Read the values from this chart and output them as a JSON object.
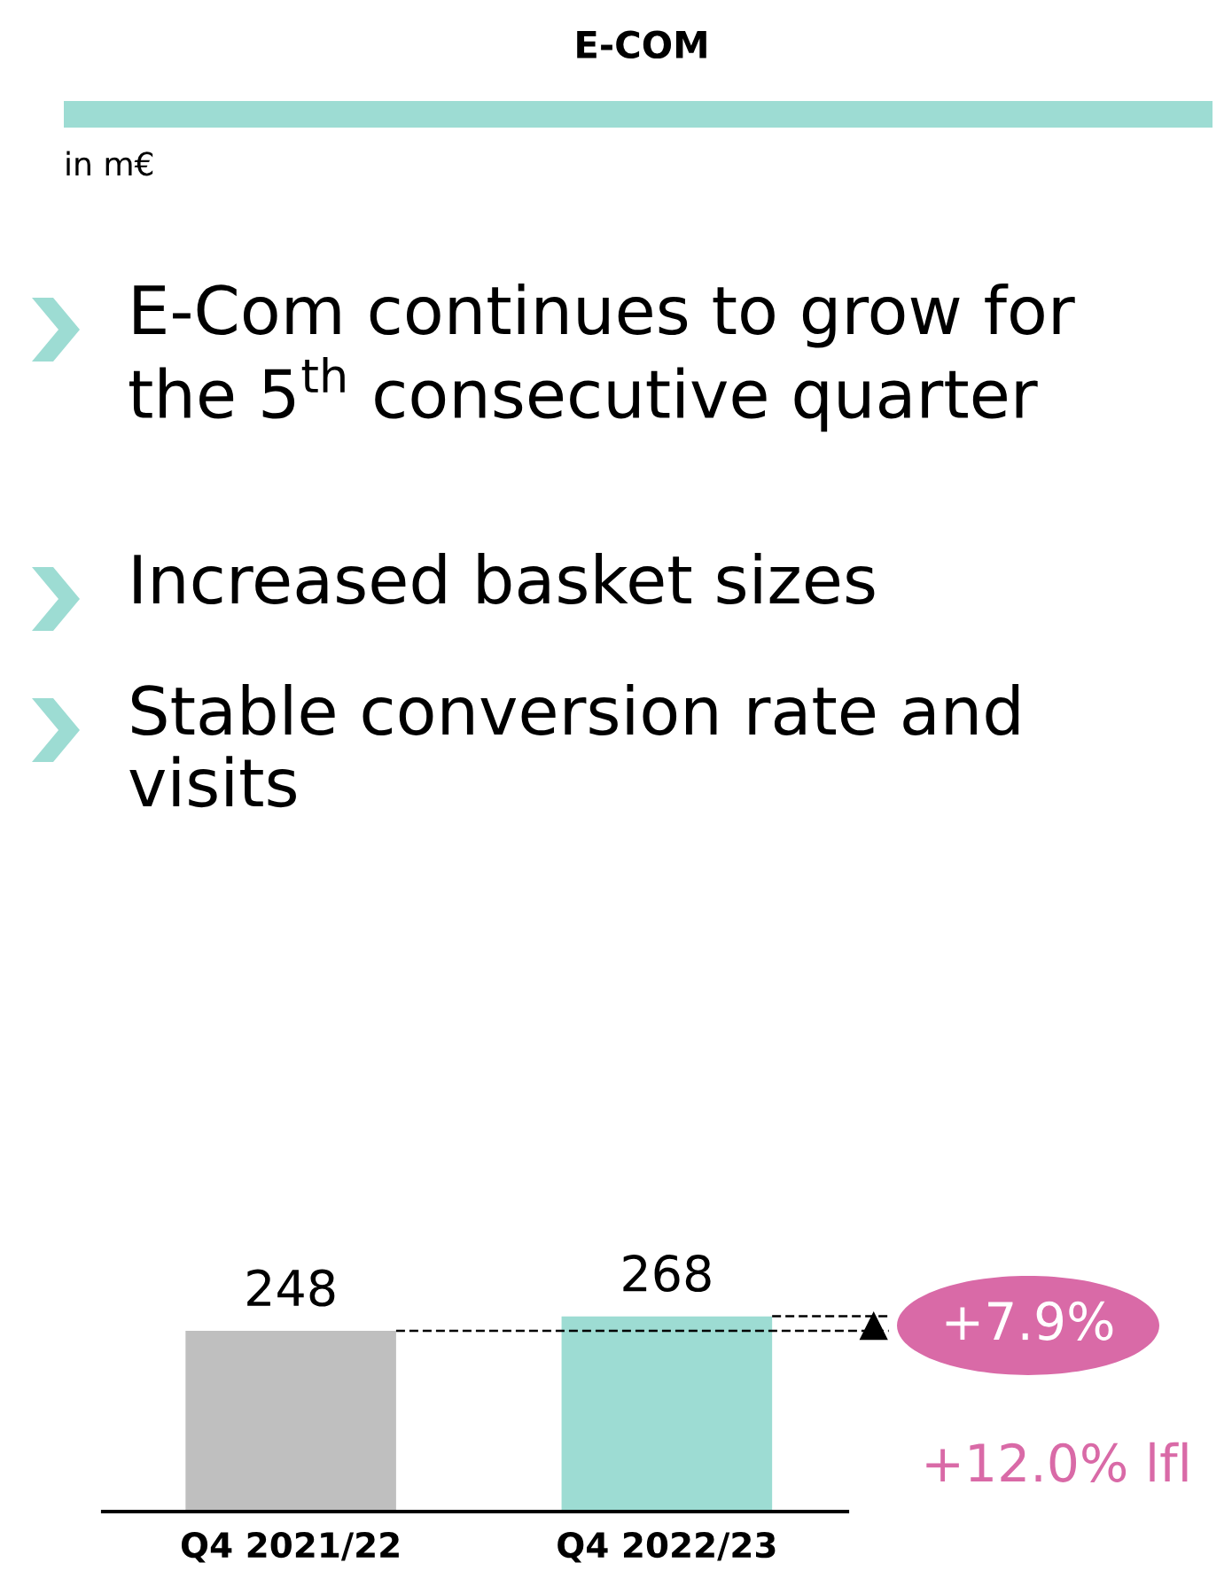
{
  "chart_data": {
    "type": "bar",
    "title": "E-COM",
    "subtitle": "in m€",
    "categories": [
      "Q4 2021/22",
      "Q4 2022/23"
    ],
    "values": [
      248,
      268
    ],
    "colors": [
      "#bfbfbf",
      "#9ddcd3"
    ],
    "data_labels": true,
    "ref_lines": [
      {
        "axis": "y",
        "value": 248,
        "line_style": "dashed",
        "color": "#000000"
      },
      {
        "axis": "y",
        "value": 268,
        "line_style": "dashed",
        "color": "#000000"
      }
    ],
    "annotations": [
      "E-Com continues to grow for\nthe 5$^{th}$ consecutive quarter",
      "Increased basket sizes",
      "Stable conversion rate and\nvisits",
      "+7.9%",
      "+12.0% lfl"
    ]
  }
}
